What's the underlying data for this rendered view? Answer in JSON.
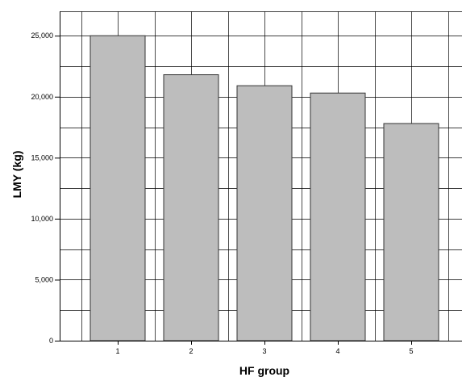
{
  "chart_data": {
    "type": "bar",
    "title": "",
    "xlabel": "HF group",
    "ylabel": "LMY (kg)",
    "categories": [
      "1",
      "2",
      "3",
      "4",
      "5"
    ],
    "values": [
      25000,
      21800,
      20900,
      20300,
      17800
    ],
    "ylim": [
      0,
      27000
    ],
    "yticks": [
      0,
      5000,
      10000,
      15000,
      20000,
      25000
    ],
    "ytick_labels": [
      "0",
      "5,000",
      "10,000",
      "15,000",
      "20,000",
      "25,000"
    ],
    "grid": true,
    "bar_color": "#bdbdbd",
    "bar_edge_color": "#333333",
    "grid_color": "#000000"
  }
}
